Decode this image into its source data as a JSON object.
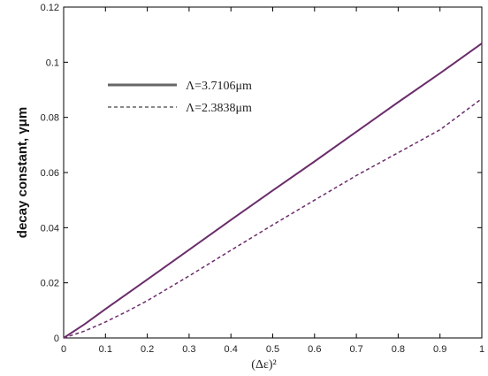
{
  "chart_data": {
    "type": "line",
    "title": "",
    "xlabel": "(Δε)²",
    "ylabel": "decay constant, γμm",
    "xlim": [
      0,
      1
    ],
    "ylim": [
      0,
      0.12
    ],
    "xticks": [
      "0",
      "0.1",
      "0.2",
      "0.3",
      "0.4",
      "0.5",
      "0.6",
      "0.7",
      "0.8",
      "0.9",
      "1"
    ],
    "yticks": [
      "0",
      "0.02",
      "0.04",
      "0.06",
      "0.08",
      "0.1",
      "0.12"
    ],
    "grid": false,
    "legend_position": "top-left",
    "series": [
      {
        "name": "Λ=3.7106μm",
        "style": "solid",
        "color": "#6b2d6b",
        "x": [
          0,
          0.05,
          0.1,
          0.2,
          0.3,
          0.4,
          0.5,
          0.6,
          0.7,
          0.8,
          0.9,
          1.0
        ],
        "y": [
          0,
          0.005,
          0.0105,
          0.0212,
          0.032,
          0.0428,
          0.0535,
          0.064,
          0.0748,
          0.0855,
          0.096,
          0.1068
        ]
      },
      {
        "name": "Λ=2.3838μm",
        "style": "dashed",
        "color": "#6b2d6b",
        "x": [
          0,
          0.05,
          0.1,
          0.15,
          0.2,
          0.3,
          0.4,
          0.5,
          0.6,
          0.7,
          0.8,
          0.9,
          1.0
        ],
        "y": [
          0,
          0.0025,
          0.0058,
          0.0095,
          0.0135,
          0.0225,
          0.0318,
          0.041,
          0.05,
          0.0589,
          0.0672,
          0.0755,
          0.0868
        ]
      }
    ]
  }
}
